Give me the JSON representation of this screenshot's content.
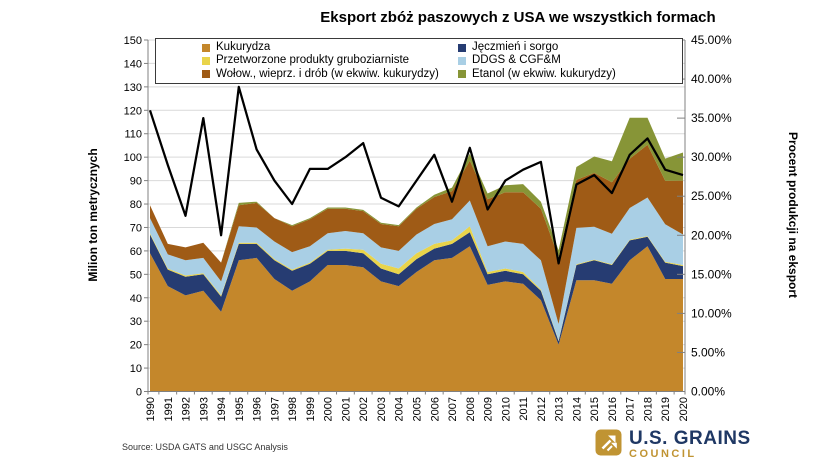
{
  "source_note": "Source: USDA GATS and USGC Analysis",
  "logo": {
    "line1": "U.S. GRAINS",
    "line2": "COUNCIL",
    "navy": "#1F3864",
    "gold": "#C09433"
  },
  "chart_data": {
    "type": "area",
    "subtype": "stacked-area-with-percent-line",
    "title": "Eksport zbóż paszowych z USA we wszystkich formach",
    "background": "#FFFFFF",
    "grid": true,
    "gridline_color": "#D9D9D9",
    "axis_line_color": "#808080",
    "legend_position": "top",
    "x": [
      1990,
      1991,
      1992,
      1993,
      1994,
      1995,
      1996,
      1997,
      1998,
      1999,
      2000,
      2001,
      2002,
      2003,
      2004,
      2005,
      2006,
      2007,
      2008,
      2009,
      2010,
      2011,
      2012,
      2013,
      2014,
      2015,
      2016,
      2017,
      2018,
      2019,
      2020
    ],
    "series": [
      {
        "name": "Kukurydza",
        "color": "#C4872B",
        "values": [
          59,
          45,
          41,
          43,
          34,
          56,
          57,
          48,
          43,
          47,
          54,
          54,
          53,
          47,
          45,
          51,
          56,
          57,
          62,
          45.5,
          47,
          46,
          39,
          20,
          47.5,
          47.5,
          46,
          56,
          62,
          48,
          48
        ]
      },
      {
        "name": "Jęczmień i sorgo",
        "color": "#263C72",
        "values": [
          8,
          7,
          8,
          7,
          6.5,
          7,
          6,
          8,
          8.5,
          7.5,
          6,
          6,
          6,
          5.5,
          5,
          5.5,
          5,
          6,
          6,
          4.5,
          4.5,
          4,
          4,
          1.5,
          6.5,
          8.5,
          8,
          8.5,
          4,
          7,
          5.5
        ]
      },
      {
        "name": "Przetworzone produkty gruboziarniste",
        "color": "#E9D44A",
        "values": [
          0.5,
          0.5,
          0.5,
          0.5,
          0.5,
          0.5,
          0.5,
          0.5,
          0.5,
          0.5,
          0.5,
          1,
          1.5,
          2,
          2.5,
          2.5,
          2,
          1.5,
          2.5,
          1,
          1,
          1,
          0.5,
          0.3,
          0.3,
          0.3,
          0.3,
          0.3,
          0.3,
          0.4,
          0.5
        ]
      },
      {
        "name": "DDGS & CGF&M",
        "color": "#A9CFE5",
        "values": [
          6.5,
          6,
          6.5,
          6.5,
          6,
          7,
          6.5,
          7.5,
          7.5,
          7,
          7,
          7.5,
          7,
          7,
          7.5,
          8,
          8.5,
          9,
          11,
          11,
          11.5,
          12,
          12.5,
          7,
          15.5,
          14,
          13,
          13.5,
          16.5,
          16,
          13
        ]
      },
      {
        "name": "Wołow., wieprz. i drób (w ekwiw. kukurydzy)",
        "color": "#9F5B16",
        "values": [
          5.5,
          4.5,
          5.5,
          6.5,
          8,
          9,
          10.5,
          10,
          11,
          11.5,
          10.5,
          9.5,
          9.5,
          10,
          10.5,
          11,
          11.5,
          12,
          17,
          20,
          21,
          22,
          22,
          28.5,
          20.5,
          23,
          22,
          21,
          22.5,
          18.5,
          23
        ]
      },
      {
        "name": "Etanol (w ekwiw. kukurydzy)",
        "color": "#879537",
        "values": [
          0,
          0,
          0,
          0,
          0,
          1,
          0.5,
          0,
          0.5,
          0.5,
          0.5,
          0.5,
          0.5,
          0.5,
          0.5,
          0.5,
          1,
          1.5,
          3,
          2.5,
          3,
          3.5,
          3,
          3,
          5.5,
          7,
          9,
          17.5,
          11.5,
          9.5,
          12
        ]
      }
    ],
    "legend_order": [
      0,
      2,
      4,
      1,
      3,
      5
    ],
    "line_series": {
      "name": "Procent produkcji na eksport",
      "color": "#000000",
      "axis": "right",
      "values": [
        36,
        29,
        22.5,
        35,
        20,
        39,
        31,
        27,
        24,
        28.5,
        28.5,
        30,
        31.8,
        24.8,
        23.7,
        27,
        30.3,
        24.3,
        31.2,
        23.3,
        27,
        28.4,
        29.4,
        16.4,
        26.5,
        27.7,
        25.4,
        30.3,
        32.4,
        28.4,
        27.7
      ]
    },
    "left_axis": {
      "label": "Milion ton metrycznych",
      "min": 0,
      "max": 150,
      "step": 10,
      "ticks": [
        0,
        10,
        20,
        30,
        40,
        50,
        60,
        70,
        80,
        90,
        100,
        110,
        120,
        130,
        140,
        150
      ]
    },
    "right_axis": {
      "label": "Procent produkcji na eksport",
      "min": 0,
      "max": 45,
      "step": 5,
      "tick_labels": [
        "0.00%",
        "5.00%",
        "10.00%",
        "15.00%",
        "20.00%",
        "25.00%",
        "30.00%",
        "35.00%",
        "40.00%",
        "45.00%"
      ]
    },
    "x_axis": {
      "label": "",
      "ticks": [
        1990,
        1991,
        1992,
        1993,
        1994,
        1995,
        1996,
        1997,
        1998,
        1999,
        2000,
        2001,
        2002,
        2003,
        2004,
        2005,
        2006,
        2007,
        2008,
        2009,
        2010,
        2011,
        2012,
        2013,
        2014,
        2015,
        2016,
        2017,
        2018,
        2019,
        2020
      ]
    }
  }
}
